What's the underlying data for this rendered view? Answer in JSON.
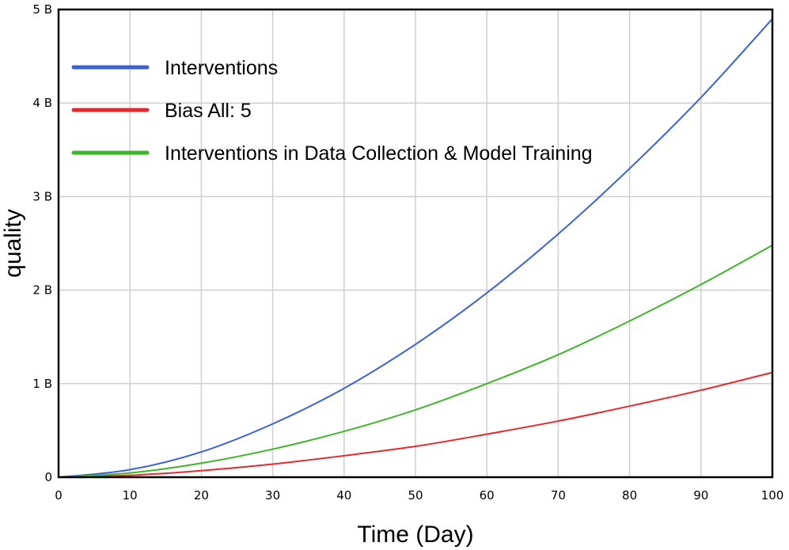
{
  "chart_data": {
    "type": "line",
    "xlabel": "Time (Day)",
    "ylabel": "quality",
    "xlim": [
      0,
      100
    ],
    "ylim": [
      0,
      5000000000
    ],
    "x_ticks": [
      0,
      10,
      20,
      30,
      40,
      50,
      60,
      70,
      80,
      90,
      100
    ],
    "x_tick_labels": [
      "0",
      "10",
      "20",
      "30",
      "40",
      "50",
      "60",
      "70",
      "80",
      "90",
      "100"
    ],
    "y_ticks": [
      0,
      1000000000,
      2000000000,
      3000000000,
      4000000000,
      5000000000
    ],
    "y_tick_labels": [
      "0",
      "1 B",
      "2 B",
      "3 B",
      "4 B",
      "5 B"
    ],
    "grid": true,
    "legend_position": "top-left",
    "x": [
      0,
      10,
      20,
      30,
      40,
      50,
      60,
      70,
      80,
      90,
      100
    ],
    "series": [
      {
        "name": "Interventions",
        "color": "#3c5fdc",
        "values": [
          0,
          80000000,
          270000000,
          570000000,
          950000000,
          1420000000,
          1970000000,
          2600000000,
          3300000000,
          4060000000,
          4900000000
        ]
      },
      {
        "name": "Bias All: 5",
        "color": "#e8282d",
        "values": [
          0,
          20000000,
          70000000,
          140000000,
          230000000,
          330000000,
          460000000,
          600000000,
          760000000,
          930000000,
          1120000000
        ]
      },
      {
        "name": "Interventions in Data Collection & Model Training",
        "color": "#3fb52a",
        "values": [
          0,
          45000000,
          150000000,
          300000000,
          490000000,
          720000000,
          1000000000,
          1310000000,
          1670000000,
          2060000000,
          2480000000
        ]
      }
    ]
  }
}
